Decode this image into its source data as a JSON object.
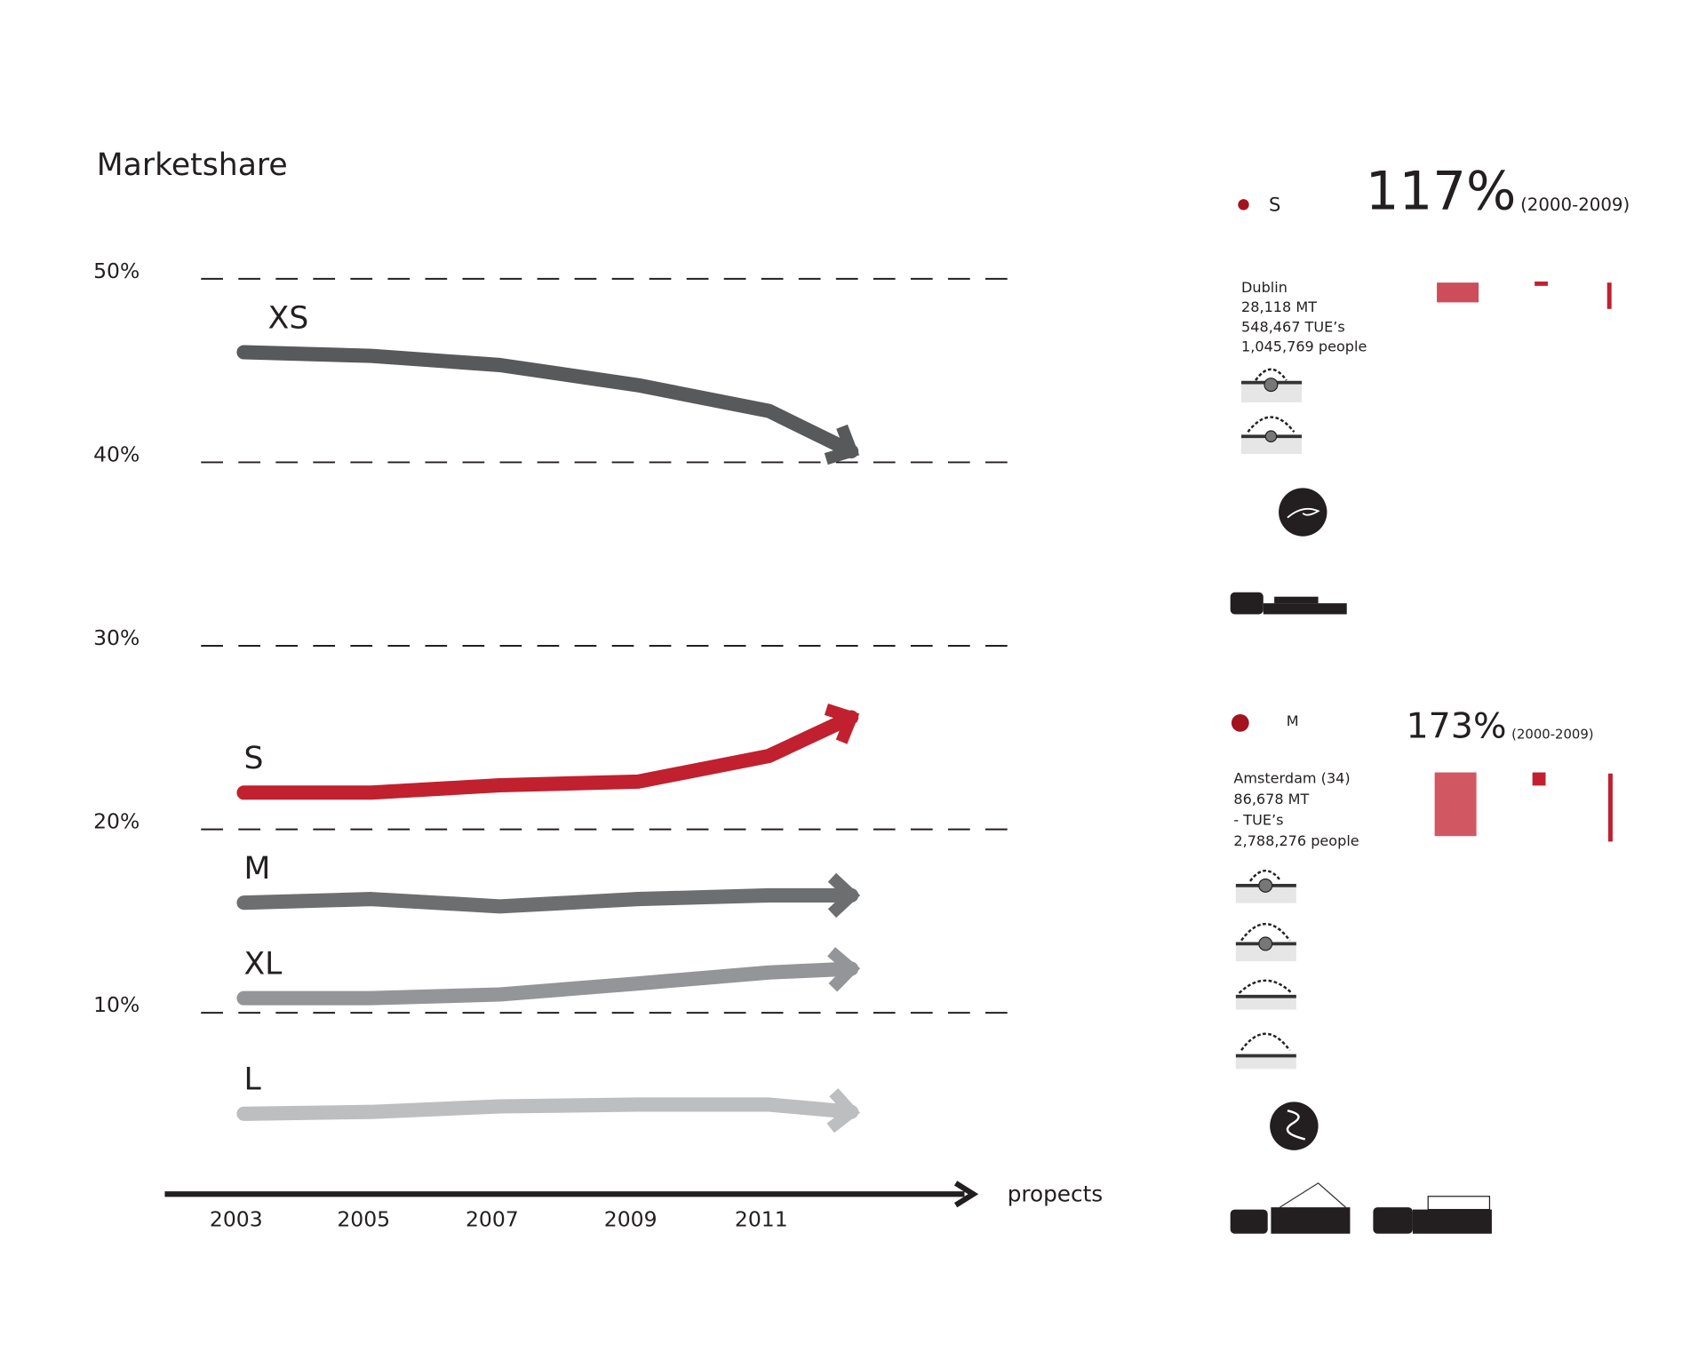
{
  "chart_data": {
    "type": "line",
    "title": "Marketshare",
    "x_label": "propects",
    "categories": [
      "2003",
      "2005",
      "2007",
      "2009",
      "2011",
      null
    ],
    "ylim": [
      0,
      55
    ],
    "yticks": [
      {
        "value": 10,
        "label": "10%"
      },
      {
        "value": 20,
        "label": "20%"
      },
      {
        "value": 30,
        "label": "30%"
      },
      {
        "value": 40,
        "label": "40%"
      },
      {
        "value": 50,
        "label": "50%"
      }
    ],
    "grid": true,
    "series": [
      {
        "name": "XS",
        "color": "#58595b",
        "values": [
          46,
          45.8,
          45.3,
          44.2,
          42.8,
          40.6
        ]
      },
      {
        "name": "S",
        "color": "#c1202f",
        "values": [
          22,
          22,
          22.4,
          22.6,
          24,
          26.1
        ]
      },
      {
        "name": "M",
        "color": "#6d6e70",
        "values": [
          16,
          16.2,
          15.8,
          16.2,
          16.4,
          16.4
        ]
      },
      {
        "name": "XL",
        "color": "#939598",
        "values": [
          10.8,
          10.8,
          11,
          11.6,
          12.2,
          12.4
        ]
      },
      {
        "name": "L",
        "color": "#bcbec0",
        "values": [
          4.5,
          4.6,
          4.9,
          5,
          5,
          4.6
        ]
      }
    ]
  },
  "panels": [
    {
      "size": "S",
      "growth": "117%",
      "period": "(2000-2009)",
      "city": "Dublin",
      "lines": [
        "28,118 MT",
        "548,467 TUE’s",
        "1,045,769 people"
      ]
    },
    {
      "size": "M",
      "growth": "173%",
      "period": "(2000-2009)",
      "city": "Amsterdam (34)",
      "lines": [
        "86,678 MT",
        "- TUE’s",
        "2,788,276 people"
      ]
    }
  ]
}
